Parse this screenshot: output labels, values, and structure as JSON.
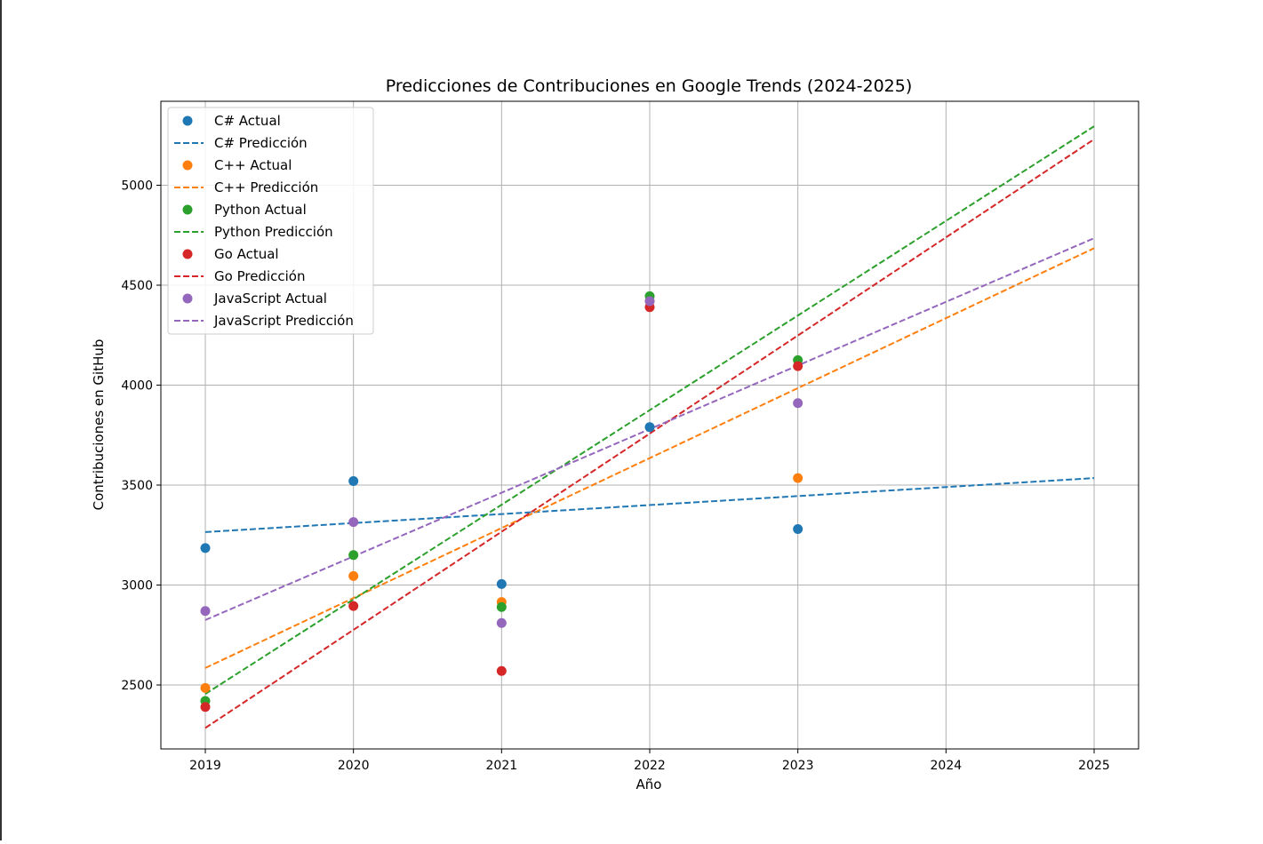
{
  "chart_data": {
    "type": "scatter",
    "title": "Predicciones de Contribuciones en Google Trends (2024-2025)",
    "xlabel": "Año",
    "ylabel": "Contribuciones en GitHub",
    "xlim": [
      2018.7,
      2025.3
    ],
    "ylim": [
      2180,
      5420
    ],
    "xticks": [
      2019,
      2020,
      2021,
      2022,
      2023,
      2024,
      2025
    ],
    "yticks": [
      2500,
      3000,
      3500,
      4000,
      4500,
      5000
    ],
    "grid": true,
    "legend_position": "top-left",
    "actual_x": [
      2019,
      2020,
      2021,
      2022,
      2023
    ],
    "prediction_x": [
      2019,
      2025
    ],
    "series": [
      {
        "color": "#1f77b4",
        "actual_label": "C# Actual",
        "prediction_label": "C# Predicción",
        "actual": [
          3185,
          3520,
          3005,
          3790,
          3280
        ],
        "prediction": [
          3265,
          3535
        ]
      },
      {
        "color": "#ff7f0e",
        "actual_label": "C++ Actual",
        "prediction_label": "C++ Predicción",
        "actual": [
          2485,
          3045,
          2915,
          4420,
          3535
        ],
        "prediction": [
          2585,
          4685
        ]
      },
      {
        "color": "#2ca02c",
        "actual_label": "Python Actual",
        "prediction_label": "Python Predicción",
        "actual": [
          2420,
          3150,
          2890,
          4445,
          4125
        ],
        "prediction": [
          2455,
          5295
        ]
      },
      {
        "color": "#d62728",
        "actual_label": "Go Actual",
        "prediction_label": "Go Predicción",
        "actual": [
          2390,
          2895,
          2570,
          4390,
          4095
        ],
        "prediction": [
          2285,
          5230
        ]
      },
      {
        "color": "#9467bd",
        "actual_label": "JavaScript Actual",
        "prediction_label": "JavaScript Predicción",
        "actual": [
          2870,
          3315,
          2810,
          4420,
          3910
        ],
        "prediction": [
          2825,
          4735
        ]
      }
    ]
  }
}
